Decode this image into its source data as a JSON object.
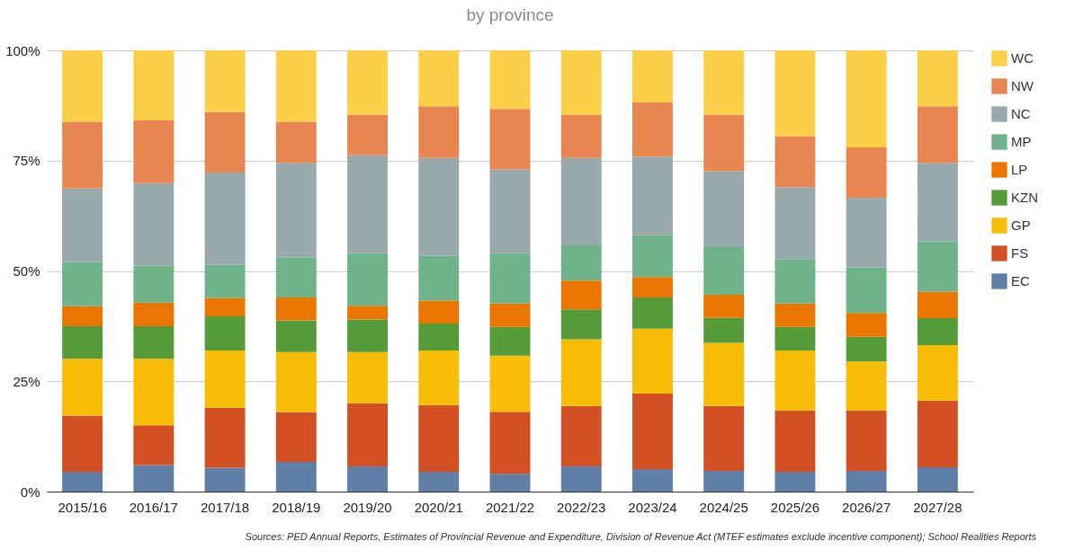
{
  "chart_data": {
    "type": "bar",
    "stacked": true,
    "title": "by province",
    "categories": [
      "2015/16",
      "2016/17",
      "2017/18",
      "2018/19",
      "2019/20",
      "2020/21",
      "2021/22",
      "2022/23",
      "2023/24",
      "2024/25",
      "2025/26",
      "2026/27",
      "2027/28"
    ],
    "series": [
      {
        "name": "EC",
        "color": "#5f7fa8",
        "values": [
          4.5,
          6,
          5.4,
          6.7,
          5.7,
          4.5,
          4,
          5.7,
          5.1,
          4.7,
          4.5,
          4.7,
          5.5
        ]
      },
      {
        "name": "FS",
        "color": "#d35024",
        "values": [
          12.7,
          9,
          13.6,
          11.3,
          14.3,
          15.1,
          14.1,
          13.7,
          17.1,
          14.7,
          13.9,
          13.7,
          15.1
        ]
      },
      {
        "name": "GP",
        "color": "#f8bd06",
        "values": [
          12.9,
          15.1,
          13,
          13.6,
          11.6,
          12.4,
          12.7,
          15.1,
          14.7,
          14.3,
          13.6,
          11.1,
          12.6
        ]
      },
      {
        "name": "KZN",
        "color": "#559b39",
        "values": [
          7.4,
          7.4,
          7.7,
          7.2,
          7.4,
          6.1,
          6.5,
          6.8,
          7.1,
          5.7,
          5.3,
          5.6,
          6.1
        ]
      },
      {
        "name": "LP",
        "color": "#ea7600",
        "values": [
          4.5,
          5.3,
          4.2,
          5.2,
          3.1,
          5.2,
          5.3,
          6.5,
          4.6,
          5.2,
          5.3,
          5.4,
          6
        ]
      },
      {
        "name": "MP",
        "color": "#6fb38a",
        "values": [
          10,
          8.4,
          7.5,
          9,
          11.9,
          10.1,
          11.4,
          8,
          9.5,
          10.8,
          10.1,
          10.3,
          11.4
        ]
      },
      {
        "name": "NC",
        "color": "#98a9ac",
        "values": [
          16.7,
          18.7,
          20.9,
          21.5,
          22.2,
          22.2,
          19,
          19.8,
          17.8,
          17.2,
          16.3,
          15.8,
          17.8
        ]
      },
      {
        "name": "NW",
        "color": "#e88652",
        "values": [
          15.1,
          14.2,
          13.7,
          9.3,
          9.2,
          11.7,
          13.7,
          9.8,
          12.3,
          12.8,
          11.5,
          11.4,
          12.8
        ]
      },
      {
        "name": "WC",
        "color": "#fccf48",
        "values": [
          16.2,
          15.9,
          14,
          16.2,
          14.6,
          12.7,
          13.3,
          14.6,
          11.8,
          14.6,
          19.5,
          22,
          12.7
        ]
      }
    ],
    "ylim": [
      0,
      100
    ],
    "yticks": [
      {
        "value": 0,
        "label": "0%"
      },
      {
        "value": 25,
        "label": "25%"
      },
      {
        "value": 50,
        "label": "50%"
      },
      {
        "value": 75,
        "label": "75%"
      },
      {
        "value": 100,
        "label": "100%"
      }
    ],
    "grid": "y",
    "legend": "right",
    "annotations": [
      "Sources: PED Annual Reports, Estimates of Provincial Revenue and Expenditure, Division of Revenue Act (MTEF estimates exclude incentive component); School Realities Reports"
    ]
  }
}
